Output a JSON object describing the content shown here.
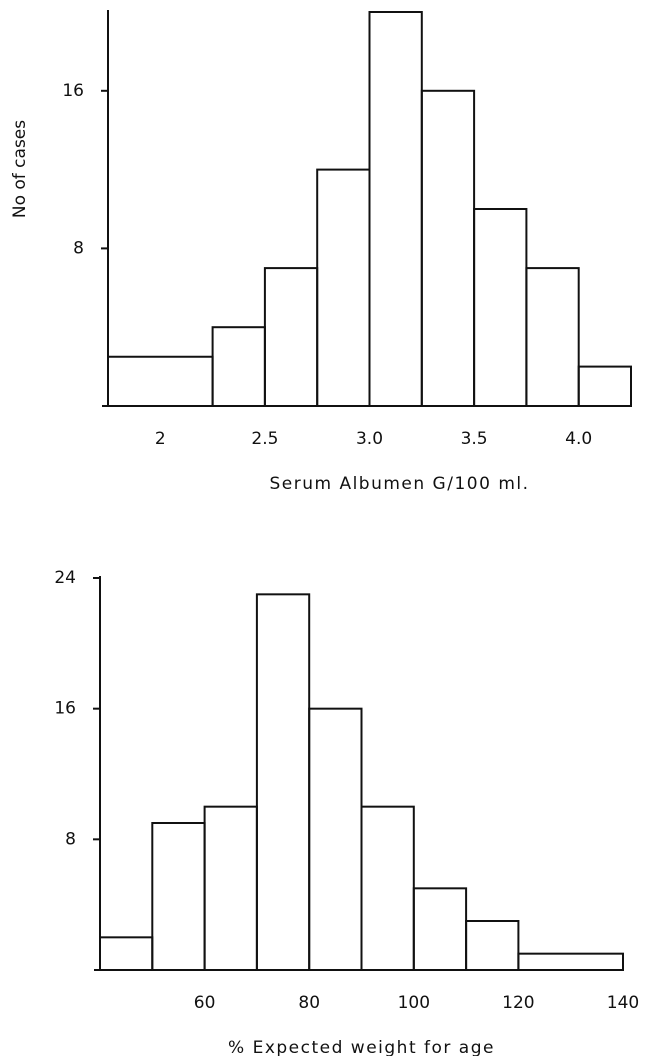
{
  "chart_data": [
    {
      "type": "histogram",
      "ylabel": "No of cases",
      "xlabel": "Serum Albumen G/100 ml.",
      "bins": [
        1.75,
        2.25,
        2.5,
        2.75,
        3.0,
        3.25,
        3.5,
        3.75,
        4.0,
        4.25
      ],
      "counts": [
        2.5,
        4,
        7,
        12,
        20,
        16,
        10,
        7,
        2
      ],
      "xlim": [
        1.75,
        4.25
      ],
      "ylim": [
        0,
        20
      ],
      "xticks": [
        2,
        2.5,
        {
          "value": 3,
          "label": "3.0"
        },
        3.5,
        {
          "value": 4,
          "label": "4.0"
        }
      ],
      "yticks": [
        8,
        16
      ],
      "color": "#111111"
    },
    {
      "type": "histogram",
      "xlabel": "% Expected weight for age",
      "bins": [
        40,
        50,
        60,
        70,
        80,
        90,
        100,
        110,
        120,
        140
      ],
      "counts": [
        2,
        9,
        10,
        23,
        16,
        10,
        5,
        3,
        1
      ],
      "xlim": [
        40,
        140
      ],
      "ylim": [
        0,
        24
      ],
      "xticks": [
        60,
        80,
        100,
        120,
        140
      ],
      "yticks": [
        8,
        16,
        24
      ],
      "color": "#111111"
    }
  ]
}
